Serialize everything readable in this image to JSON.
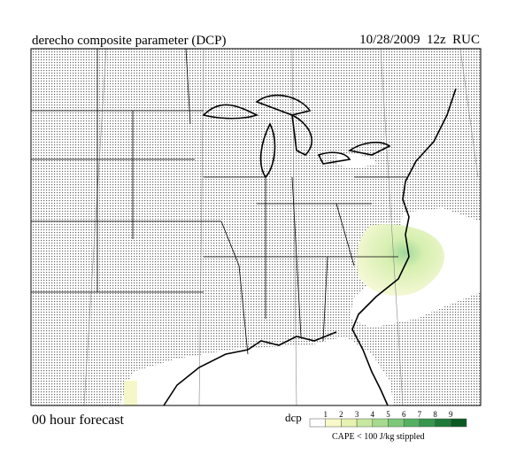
{
  "header": {
    "title": "derecho composite parameter (DCP)",
    "valid_time": "10/28/2009  12z  RUC"
  },
  "footer": {
    "forecast": "00 hour forecast"
  },
  "legend": {
    "title": "dcp",
    "levels": [
      1,
      2,
      3,
      4,
      5,
      6,
      7,
      8,
      9
    ],
    "colors": [
      "#ffffff",
      "#f8f8c8",
      "#e6f2b0",
      "#c8e8a0",
      "#a6da8c",
      "#7cc878",
      "#55b062",
      "#35964c",
      "#1e7a38",
      "#0a5a22"
    ],
    "note": "CAPE < 100 J/kg stippled"
  }
}
